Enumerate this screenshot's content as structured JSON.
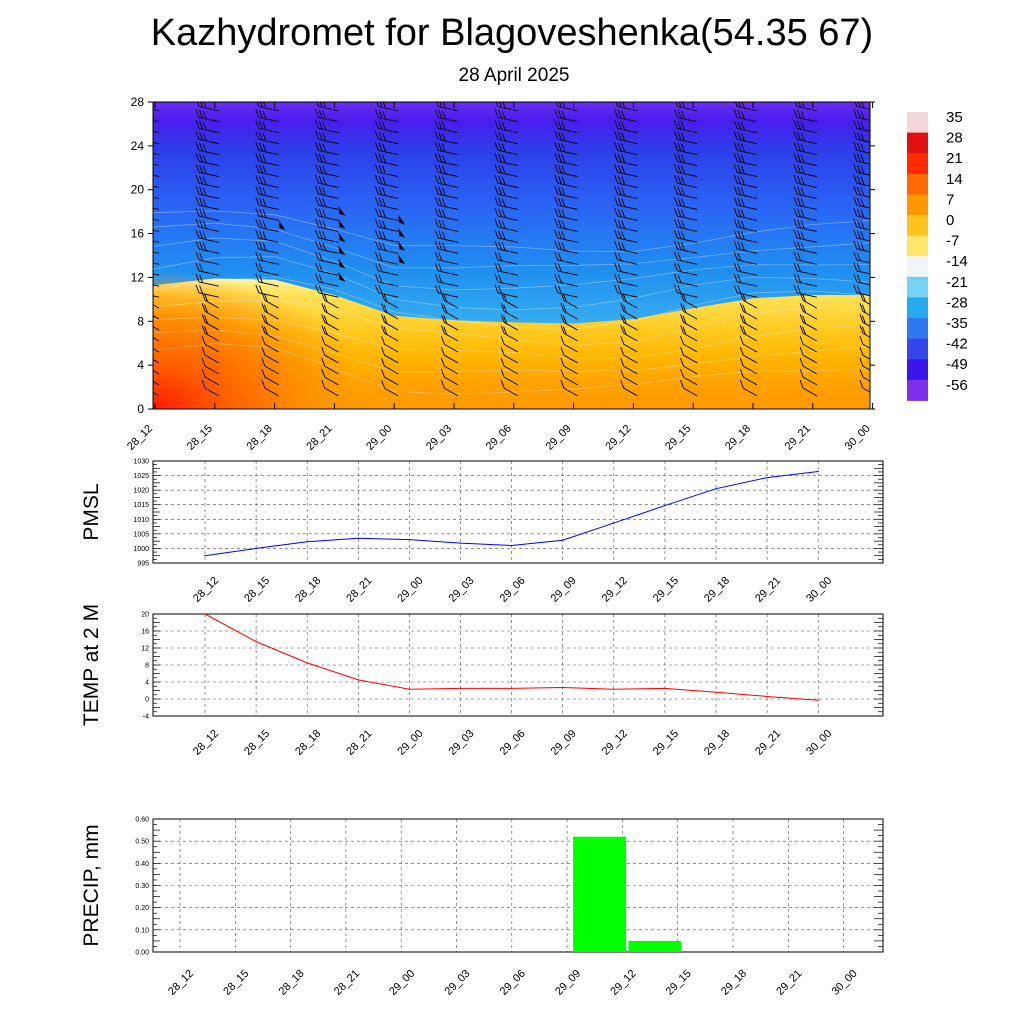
{
  "header": {
    "title": "Kazhydromet for Blagoveshenka(54.35 67)",
    "subtitle": "28 April 2025"
  },
  "time_labels": [
    "28_12",
    "28_15",
    "28_18",
    "28_21",
    "29_00",
    "29_03",
    "29_06",
    "29_09",
    "29_12",
    "29_15",
    "29_18",
    "29_21",
    "30_00"
  ],
  "chart_data": [
    {
      "type": "heatmap",
      "title": "",
      "xlabel": "",
      "ylabel": "",
      "x": [
        "28_12",
        "28_15",
        "28_18",
        "28_21",
        "29_00",
        "29_03",
        "29_06",
        "29_09",
        "29_12",
        "29_15",
        "29_18",
        "29_21",
        "30_00"
      ],
      "ylim": [
        0,
        28
      ],
      "yticks": [
        0,
        4,
        8,
        12,
        16,
        20,
        24,
        28
      ],
      "colorbar_labels": [
        "35",
        "28",
        "21",
        "14",
        "7",
        "0",
        "-7",
        "-14",
        "-21",
        "-28",
        "-35",
        "-42",
        "-49",
        "-56"
      ],
      "colorbar_colors": [
        "#f2f2f2",
        "#d80000",
        "#ff3300",
        "#ff8a00",
        "#ffb000",
        "#ffd21a",
        "#ffec70",
        "#f2f2f2",
        "#6fd0f5",
        "#20a6ee",
        "#2a6ff5",
        "#3344ee",
        "#3d10ea",
        "#7a2bef"
      ],
      "freezing_level_height": [
        11.3,
        11.9,
        11.8,
        10.4,
        8.5,
        8.1,
        7.9,
        7.8,
        8.2,
        9.2,
        10.1,
        10.4,
        10.4
      ],
      "surface_temperature": [
        20,
        13.5,
        8.5,
        4.5,
        2.5,
        2.5,
        2.5,
        2.6,
        2.4,
        2.5,
        1.6,
        0.6,
        -0.2
      ],
      "wind_barbs": "overlay",
      "grid": false
    },
    {
      "type": "line",
      "ylabel": "PMSL",
      "x": [
        "28_12",
        "28_15",
        "28_18",
        "28_21",
        "29_00",
        "29_03",
        "29_06",
        "29_09",
        "29_12",
        "29_15",
        "29_18",
        "29_21",
        "30_00"
      ],
      "series": [
        {
          "values": [
            997.5,
            1000.0,
            1002.3,
            1003.5,
            1003.0,
            1001.8,
            1001.0,
            1002.8,
            1008.7,
            1014.7,
            1020.5,
            1024.3,
            1026.4
          ],
          "color": "#0000ff"
        }
      ],
      "ylim": [
        995,
        1030
      ],
      "yticks": [
        995,
        1000,
        1005,
        1010,
        1015,
        1020,
        1025,
        1030
      ],
      "grid": true
    },
    {
      "type": "line",
      "ylabel": "TEMP at 2 M",
      "x": [
        "28_12",
        "28_15",
        "28_18",
        "28_21",
        "29_00",
        "29_03",
        "29_06",
        "29_09",
        "29_12",
        "29_15",
        "29_18",
        "29_21",
        "30_00"
      ],
      "series": [
        {
          "values": [
            20,
            13.5,
            8.5,
            4.5,
            2.3,
            2.5,
            2.5,
            2.7,
            2.3,
            2.5,
            1.6,
            0.6,
            -0.3
          ],
          "color": "#ff0000"
        }
      ],
      "ylim": [
        -4,
        20
      ],
      "yticks": [
        -4,
        0,
        4,
        8,
        12,
        16,
        20
      ],
      "grid": true
    },
    {
      "type": "bar",
      "ylabel": "PRECIP, mm",
      "categories": [
        "28_12",
        "28_15",
        "28_18",
        "28_21",
        "29_00",
        "29_03",
        "29_06",
        "29_09",
        "29_12",
        "29_15",
        "29_18",
        "29_21",
        "30_00"
      ],
      "values": [
        0,
        0,
        0,
        0,
        0,
        0,
        0,
        0.52,
        0.05,
        0,
        0,
        0,
        0
      ],
      "bar_color": "#00ff00",
      "ylim": [
        0,
        0.6
      ],
      "yticks": [
        "0.00",
        "0.10",
        "0.20",
        "0.30",
        "0.40",
        "0.50",
        "0.60"
      ],
      "grid": true
    }
  ]
}
